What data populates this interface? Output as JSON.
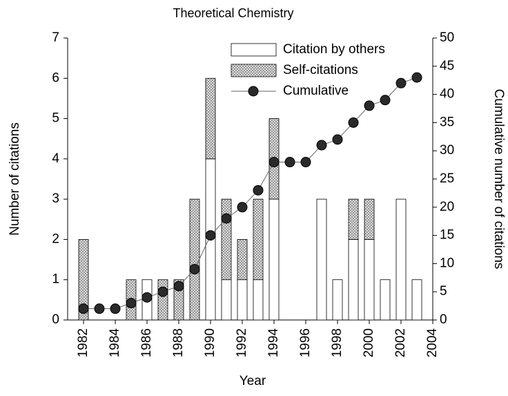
{
  "chart_data": {
    "type": "bar_line",
    "title": "Theoretical Chemistry",
    "xlabel": "Year",
    "ylabel": "Number of citations",
    "y2label": "Cumulative number of citations",
    "x": [
      1982,
      1983,
      1984,
      1985,
      1986,
      1987,
      1988,
      1989,
      1990,
      1991,
      1992,
      1993,
      1994,
      1995,
      1996,
      1997,
      1998,
      1999,
      2000,
      2001,
      2002,
      2003
    ],
    "series": [
      {
        "name": "Citation by others",
        "kind": "bar",
        "color": "#ffffff",
        "values": [
          0,
          0,
          0,
          0,
          1,
          0,
          0,
          0,
          4,
          1,
          1,
          1,
          3,
          0,
          0,
          3,
          1,
          2,
          2,
          1,
          3,
          1
        ]
      },
      {
        "name": "Self-citations",
        "kind": "bar",
        "color": "#8a8a8a",
        "values": [
          2,
          0,
          0,
          1,
          0,
          1,
          1,
          3,
          2,
          2,
          1,
          2,
          2,
          0,
          0,
          0,
          0,
          1,
          1,
          0,
          0,
          0
        ]
      },
      {
        "name": "Cumulative",
        "kind": "line",
        "axis": "y2",
        "color": "#2a2a2a",
        "values": [
          2,
          2,
          2,
          3,
          4,
          5,
          6,
          9,
          15,
          18,
          20,
          23,
          28,
          28,
          28,
          31,
          32,
          35,
          38,
          39,
          42,
          43
        ]
      }
    ],
    "xlim": [
      1981,
      2004
    ],
    "xticks": [
      1982,
      1984,
      1986,
      1988,
      1990,
      1992,
      1994,
      1996,
      1998,
      2000,
      2002,
      2004
    ],
    "ylim": [
      0,
      7
    ],
    "yticks": [
      0,
      1,
      2,
      3,
      4,
      5,
      6,
      7
    ],
    "y2lim": [
      0,
      50
    ],
    "y2ticks": [
      0,
      5,
      10,
      15,
      20,
      25,
      30,
      35,
      40,
      45,
      50
    ],
    "grid": false,
    "legend": "top"
  }
}
